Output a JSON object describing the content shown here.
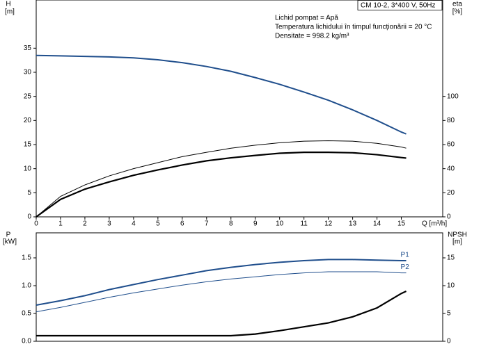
{
  "chart_data": [
    {
      "type": "line",
      "ylabel": "H",
      "yunit": "[m]",
      "y2label": "eta",
      "y2unit": "[%]",
      "xlabel": "Q [m³/h]",
      "box_label": "CM 10-2, 3*400 V, 50Hz",
      "annotations": [
        "Lichid pompat = Apă",
        "Temperatura lichidului în timpul funcționării = 20 °C",
        "Densitate = 998.2 kg/m³"
      ],
      "x": [
        0,
        1,
        2,
        3,
        4,
        5,
        6,
        7,
        8,
        9,
        10,
        11,
        12,
        13,
        14,
        15,
        15.2
      ],
      "xlim": [
        0,
        16.7
      ],
      "xticks": [
        0,
        1,
        2,
        3,
        4,
        5,
        6,
        7,
        8,
        9,
        10,
        11,
        12,
        13,
        14,
        15
      ],
      "ylim": [
        0,
        45
      ],
      "yticks": [
        0,
        5,
        10,
        15,
        20,
        25,
        30,
        35
      ],
      "y2lim": [
        0,
        180
      ],
      "y2ticks": [
        0,
        20,
        40,
        60,
        80,
        100
      ],
      "series": [
        {
          "color": "#1f4e8c",
          "values": [
            33.5,
            33.4,
            33.3,
            33.2,
            33.0,
            32.6,
            32.0,
            31.2,
            30.2,
            28.9,
            27.5,
            25.9,
            24.2,
            22.2,
            20.0,
            17.6,
            17.2
          ]
        },
        {
          "color": "#000000",
          "axis": "y2",
          "values": [
            0,
            17,
            26.5,
            34,
            40,
            45,
            50,
            53.6,
            57,
            59.5,
            61.5,
            62.8,
            63.2,
            62.8,
            61,
            58,
            57
          ]
        },
        {
          "color": "#000000",
          "axis": "y2",
          "values": [
            0,
            14.5,
            23,
            29,
            34.5,
            39,
            43,
            46.5,
            49,
            51,
            52.8,
            53.6,
            53.6,
            53.2,
            51.6,
            49.2,
            48.8
          ]
        }
      ]
    },
    {
      "type": "line",
      "ylabel": "P",
      "yunit": "[kW]",
      "y2label": "NPSH",
      "y2unit": "[m]",
      "x": [
        0,
        1,
        2,
        3,
        4,
        5,
        6,
        7,
        8,
        9,
        10,
        11,
        12,
        13,
        14,
        15,
        15.2
      ],
      "xlim": [
        0,
        16.7
      ],
      "ylim": [
        0,
        1.95
      ],
      "yticks": [
        {
          "value": 0,
          "label": "0.0"
        },
        0.5,
        {
          "value": 1,
          "label": "1.0"
        },
        1.5
      ],
      "y2lim": [
        0,
        19.5
      ],
      "y2ticks": [
        0,
        5,
        10,
        15
      ],
      "series": [
        {
          "name": "P1",
          "color": "#1f4e8c",
          "values": [
            0.65,
            0.73,
            0.82,
            0.93,
            1.02,
            1.11,
            1.19,
            1.27,
            1.33,
            1.38,
            1.42,
            1.45,
            1.47,
            1.47,
            1.46,
            1.45,
            1.45
          ]
        },
        {
          "name": "P2",
          "color": "#1f4e8c",
          "values": [
            0.53,
            0.61,
            0.7,
            0.79,
            0.87,
            0.94,
            1.01,
            1.07,
            1.12,
            1.16,
            1.2,
            1.23,
            1.25,
            1.25,
            1.25,
            1.23,
            1.23
          ]
        },
        {
          "color": "#000000",
          "axis": "y2",
          "values": [
            1.0,
            1.0,
            1.0,
            1.0,
            1.0,
            1.0,
            1.0,
            1.0,
            1.0,
            1.3,
            1.9,
            2.6,
            3.3,
            4.4,
            6.0,
            8.6,
            9.0
          ]
        }
      ]
    }
  ]
}
